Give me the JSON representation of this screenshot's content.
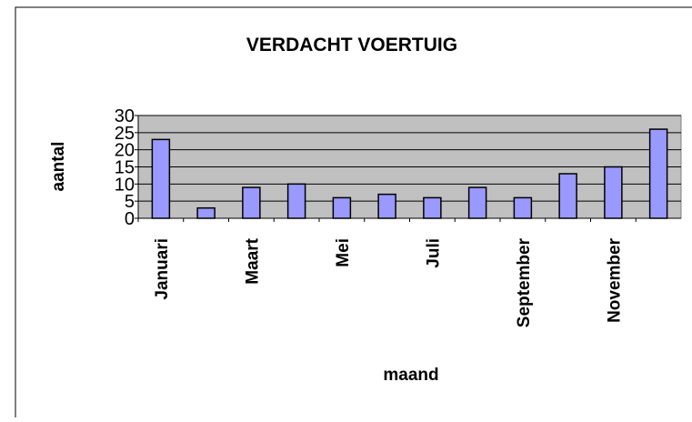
{
  "chart_data": {
    "type": "bar",
    "title": "VERDACHT VOERTUIG",
    "x_label": "maand",
    "y_label": "aantal",
    "categories": [
      "Januari",
      null,
      "Maart",
      null,
      "Mei",
      null,
      "Juli",
      null,
      "September",
      null,
      "November",
      null
    ],
    "values": [
      23,
      3,
      9,
      10,
      6,
      7,
      6,
      9,
      6,
      13,
      15,
      26
    ],
    "color": "#9999ff",
    "ylim": [
      0,
      30
    ],
    "yticks": [
      0,
      5,
      10,
      15,
      20,
      25,
      30
    ],
    "grid": true
  }
}
